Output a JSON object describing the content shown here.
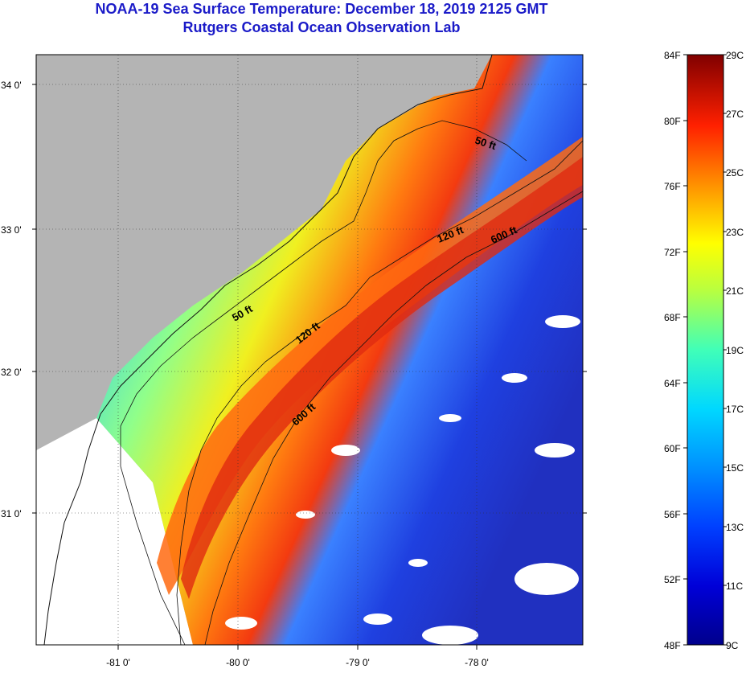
{
  "title": {
    "line1": "NOAA-19 Sea Surface Temperature:  December 18, 2019 2125 GMT",
    "line2": "Rutgers Coastal Ocean Observation Lab"
  },
  "map": {
    "lat_ticks": [
      "34 0'",
      "33 0'",
      "32 0'",
      "31 0'"
    ],
    "lon_ticks": [
      "-81 0'",
      "-80 0'",
      "-79 0'",
      "-78 0'"
    ],
    "contours": [
      "50 ft",
      "50 ft",
      "120 ft",
      "120 ft",
      "600 ft",
      "600 ft"
    ]
  },
  "colorbar": {
    "fahrenheit": [
      "84F",
      "80F",
      "76F",
      "72F",
      "68F",
      "64F",
      "60F",
      "56F",
      "52F",
      "48F"
    ],
    "celsius": [
      "29C",
      "27C",
      "25C",
      "23C",
      "21C",
      "19C",
      "17C",
      "15C",
      "13C",
      "11C",
      "9C"
    ],
    "colors": {
      "land": "#b4b4b4",
      "cloud": "#ffffff"
    }
  }
}
